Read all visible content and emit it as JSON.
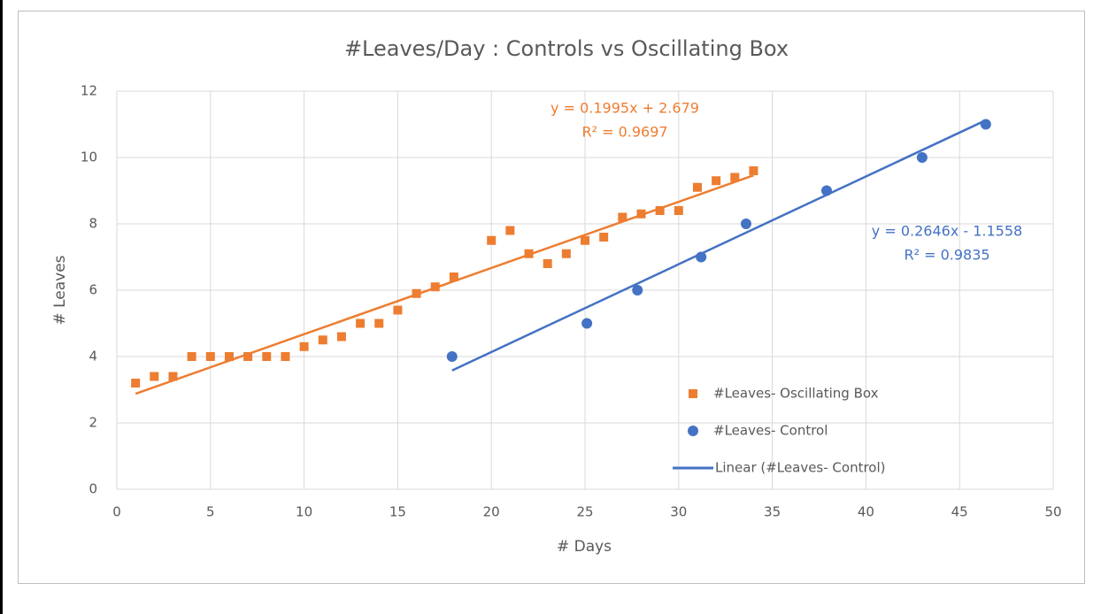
{
  "chart_data": {
    "type": "scatter",
    "title": "#Leaves/Day : Controls vs Oscillating Box",
    "x_label": "# Days",
    "y_label": "# Leaves",
    "xlim": [
      0,
      50
    ],
    "xticks": [
      0,
      5,
      10,
      15,
      20,
      25,
      30,
      35,
      40,
      45,
      50
    ],
    "ylim": [
      0,
      12
    ],
    "yticks": [
      0,
      2,
      4,
      6,
      8,
      10,
      12
    ],
    "grid": true,
    "series": [
      {
        "name": "#Leaves- Oscillating Box",
        "color": "#ed7d31",
        "marker": "square",
        "x": [
          1,
          2,
          3,
          4,
          5,
          6,
          7,
          8,
          9,
          10,
          11,
          12,
          13,
          14,
          15,
          16,
          17,
          18,
          20,
          21,
          22,
          23,
          24,
          25,
          26,
          27,
          28,
          29,
          30,
          31,
          32,
          33,
          34
        ],
        "values": [
          3.2,
          3.4,
          3.4,
          4.0,
          4.0,
          4.0,
          4.0,
          4.0,
          4.0,
          4.3,
          4.5,
          4.6,
          5.0,
          5.0,
          5.4,
          5.9,
          6.1,
          6.4,
          7.5,
          7.8,
          7.1,
          6.8,
          7.1,
          7.5,
          7.6,
          8.2,
          8.3,
          8.4,
          8.4,
          9.1,
          9.3,
          9.4,
          9.6
        ],
        "trendline": {
          "slope": 0.1995,
          "intercept": 2.679,
          "equation": "y = 0.1995x + 2.679",
          "r2": "R² = 0.9697"
        }
      },
      {
        "name": "#Leaves- Control",
        "color": "#4472c4",
        "marker": "circle",
        "x": [
          17.9,
          25.1,
          27.8,
          31.2,
          33.6,
          37.9,
          43.0,
          46.4
        ],
        "values": [
          4,
          5,
          6,
          7,
          8,
          9,
          10,
          11
        ],
        "trendline": {
          "name": "Linear (#Leaves- Control)",
          "slope": 0.2646,
          "intercept": -1.1558,
          "equation": "y = 0.2646x - 1.1558",
          "r2": "R² = 0.9835"
        }
      }
    ]
  }
}
